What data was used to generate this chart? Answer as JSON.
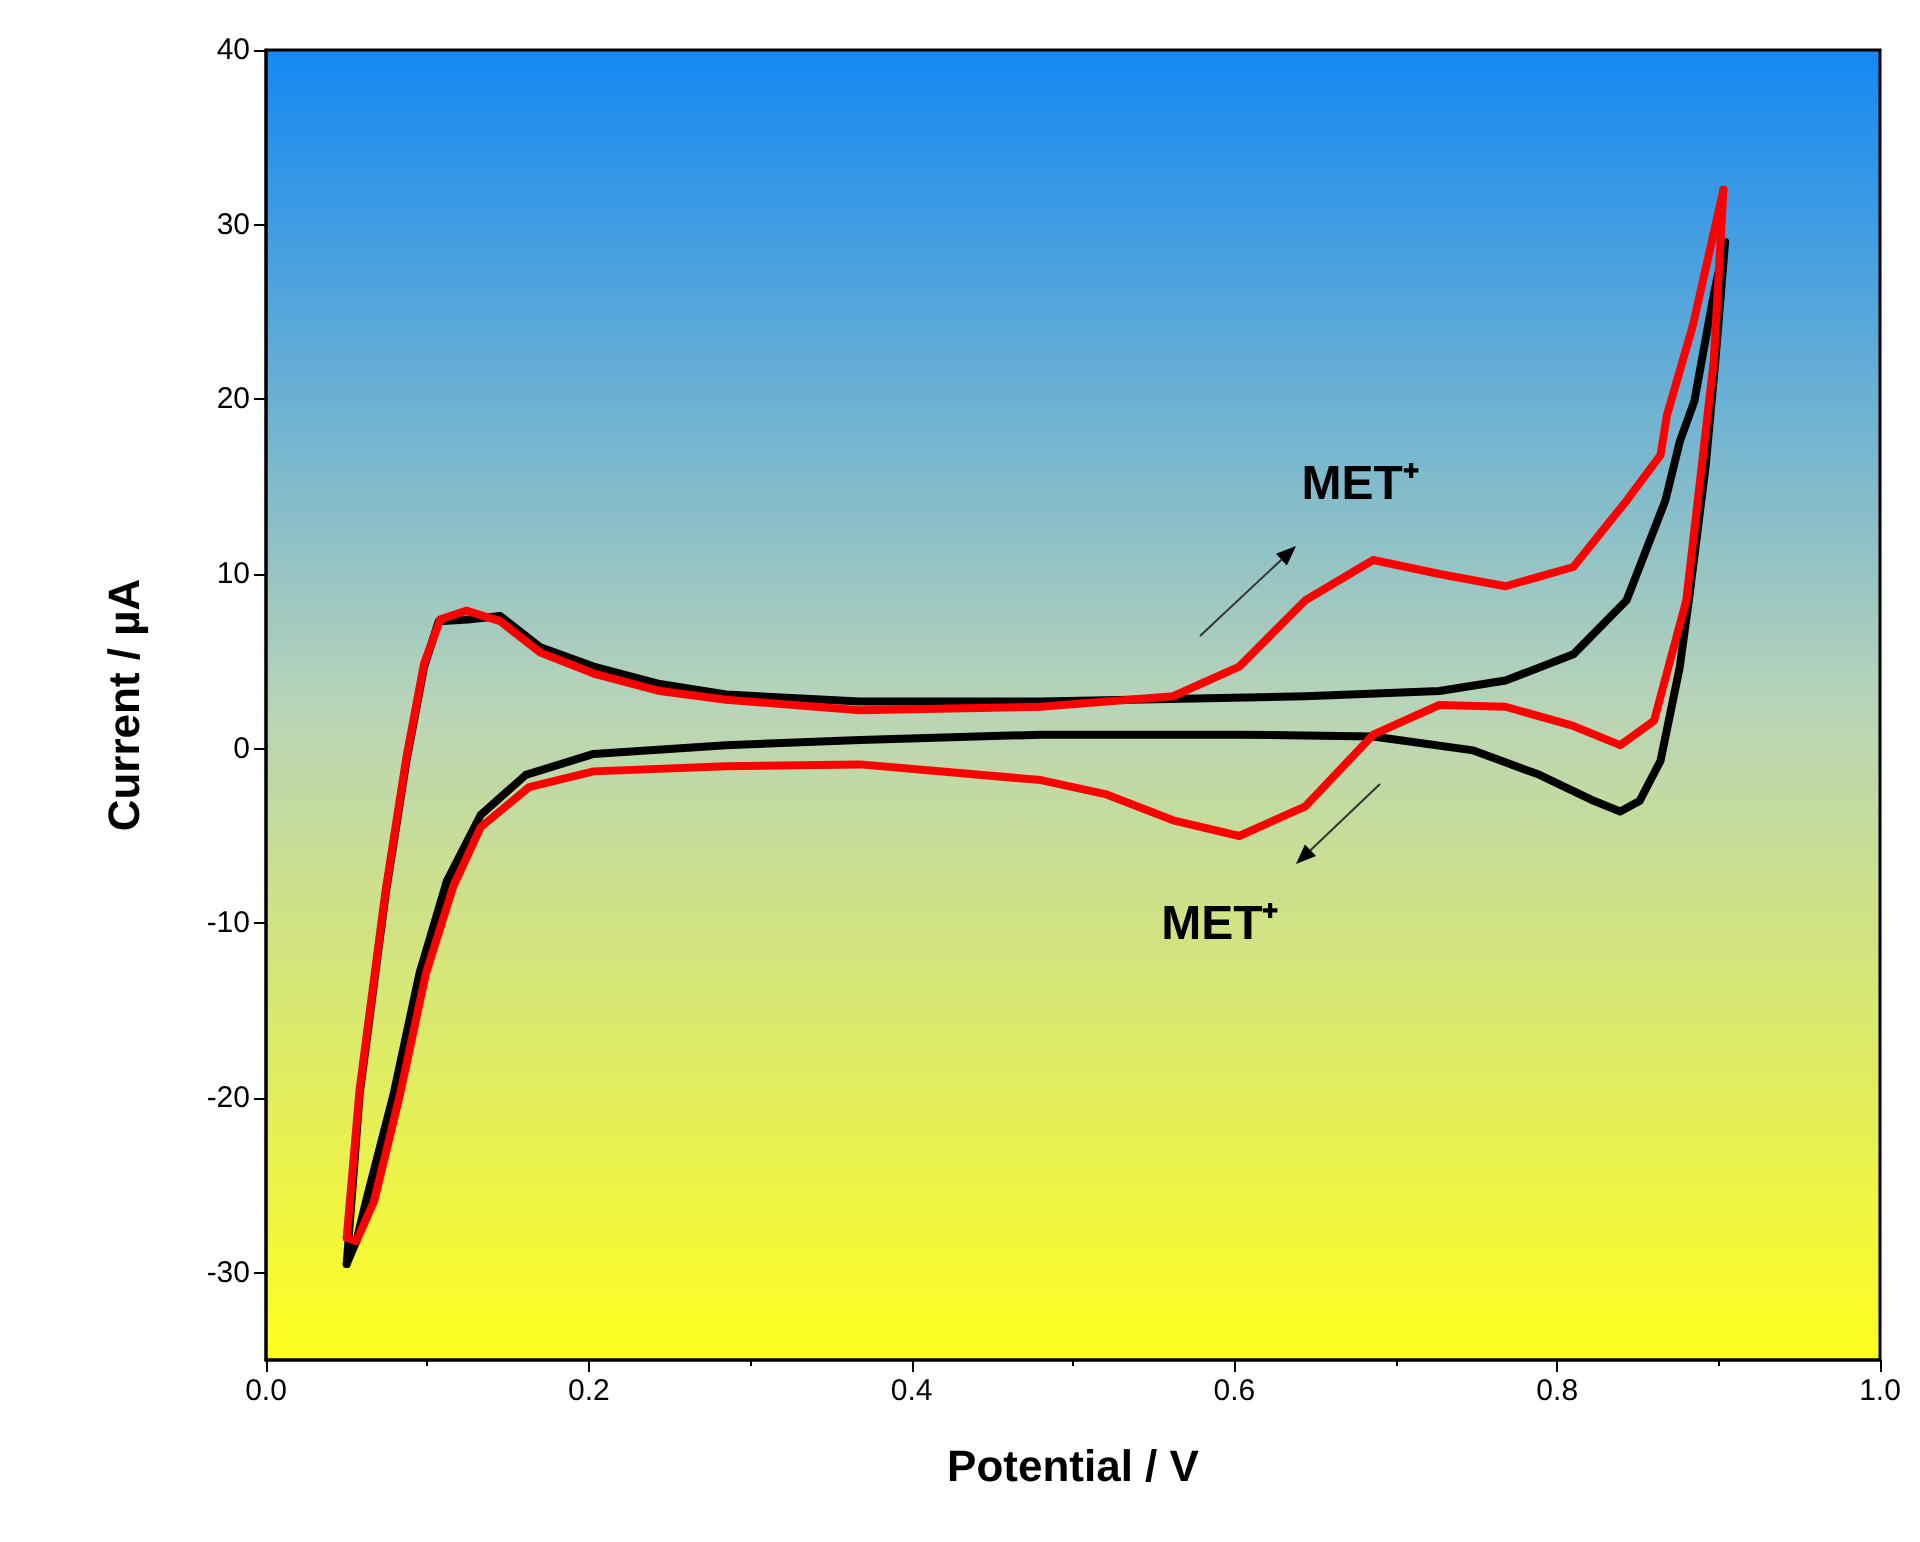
{
  "chart_data": {
    "type": "line",
    "xlabel": "Potential / V",
    "ylabel": "Current / µA",
    "xlim": [
      0,
      1
    ],
    "xticks": [
      {
        "value": 0,
        "label": "0.0"
      },
      0.2,
      0.4,
      0.6,
      0.8,
      {
        "value": 1,
        "label": "1.0"
      }
    ],
    "ylim": [
      -35,
      40
    ],
    "yticks": [
      -30,
      -20,
      -10,
      0,
      10,
      20,
      30,
      40
    ],
    "marker": "none",
    "line_style": "solid",
    "annotations": [
      "MET⁺",
      "MET⁺"
    ],
    "series": [
      {
        "color": "#000000",
        "x": [
          0.05,
          0.058,
          0.074,
          0.087,
          0.098,
          0.107,
          0.125,
          0.145,
          0.17,
          0.203,
          0.244,
          0.285,
          0.368,
          0.48,
          0.644,
          0.727,
          0.768,
          0.81,
          0.843,
          0.867,
          0.876,
          0.885,
          0.897,
          0.904
        ],
        "values": [
          -29.5,
          -19.8,
          -8.4,
          -0.7,
          4.7,
          7.3,
          7.4,
          7.6,
          5.8,
          4.7,
          3.7,
          3.1,
          2.7,
          2.7,
          3.0,
          3.3,
          3.9,
          5.4,
          8.5,
          14.2,
          17.6,
          19.9,
          26,
          29
        ]
      },
      {
        "color": "#000000",
        "x": [
          0.904,
          0.898,
          0.892,
          0.882,
          0.876,
          0.864,
          0.851,
          0.839,
          0.823,
          0.789,
          0.748,
          0.686,
          0.603,
          0.48,
          0.368,
          0.285,
          0.203,
          0.161,
          0.133,
          0.112,
          0.095,
          0.079,
          0.062,
          0.056,
          0.05
        ],
        "values": [
          29,
          22.2,
          16.2,
          8.8,
          4.7,
          -0.7,
          -3.0,
          -3.6,
          -3.0,
          -1.5,
          -0.1,
          0.7,
          0.8,
          0.8,
          0.5,
          0.2,
          -0.3,
          -1.5,
          -3.8,
          -7.6,
          -12.9,
          -19.8,
          -25.9,
          -28.2,
          -29.5
        ]
      },
      {
        "color": "#ff0000",
        "x": [
          0.05,
          0.058,
          0.074,
          0.087,
          0.098,
          0.108,
          0.124,
          0.145,
          0.17,
          0.203,
          0.244,
          0.285,
          0.368,
          0.48,
          0.562,
          0.603,
          0.644,
          0.686,
          0.727,
          0.768,
          0.81,
          0.843,
          0.864,
          0.868,
          0.884,
          0.903
        ],
        "values": [
          -28,
          -19.5,
          -8.2,
          -0.5,
          4.9,
          7.4,
          7.9,
          7.3,
          5.5,
          4.3,
          3.3,
          2.8,
          2.2,
          2.4,
          3.0,
          4.7,
          8.5,
          10.8,
          10.0,
          9.3,
          10.4,
          14.2,
          16.8,
          19.1,
          24.2,
          32
        ]
      },
      {
        "color": "#ff0000",
        "x": [
          0.903,
          0.897,
          0.88,
          0.86,
          0.839,
          0.81,
          0.768,
          0.727,
          0.686,
          0.644,
          0.603,
          0.562,
          0.52,
          0.48,
          0.368,
          0.285,
          0.203,
          0.163,
          0.133,
          0.116,
          0.099,
          0.083,
          0.067,
          0.056,
          0.05
        ],
        "values": [
          32,
          22.2,
          8.5,
          1.6,
          0.2,
          1.3,
          2.4,
          2.5,
          0.8,
          -3.3,
          -5.0,
          -4.1,
          -2.6,
          -1.8,
          -0.9,
          -1.0,
          -1.3,
          -2.2,
          -4.5,
          -7.9,
          -12.9,
          -19.8,
          -25.9,
          -28.2,
          -28
        ]
      }
    ]
  }
}
